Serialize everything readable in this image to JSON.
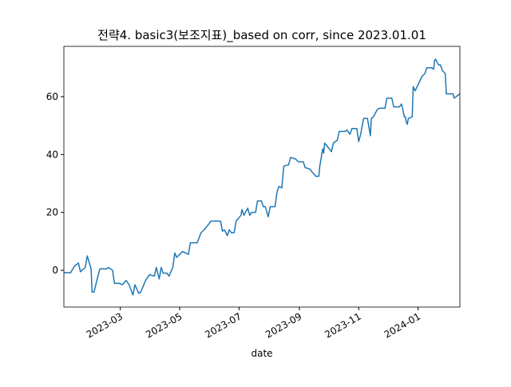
{
  "chart_data": {
    "type": "line",
    "title": "전략4. basic3(보조지표)_based on corr, since 2023.01.01",
    "xlabel": "date",
    "color": "#1f77b4",
    "x": [
      "2023-01-02",
      "2023-01-09",
      "2023-01-13",
      "2023-01-17",
      "2023-01-19",
      "2023-01-24",
      "2023-01-26",
      "2023-01-30",
      "2023-01-31",
      "2023-02-02",
      "2023-02-06",
      "2023-02-08",
      "2023-02-15",
      "2023-02-17",
      "2023-02-21",
      "2023-02-23",
      "2023-02-28",
      "2023-03-03",
      "2023-03-07",
      "2023-03-10",
      "2023-03-14",
      "2023-03-16",
      "2023-03-20",
      "2023-03-22",
      "2023-03-27",
      "2023-03-31",
      "2023-04-05",
      "2023-04-07",
      "2023-04-10",
      "2023-04-12",
      "2023-04-14",
      "2023-04-18",
      "2023-04-20",
      "2023-04-24",
      "2023-04-26",
      "2023-04-28",
      "2023-05-04",
      "2023-05-10",
      "2023-05-12",
      "2023-05-19",
      "2023-05-23",
      "2023-05-26",
      "2023-05-31",
      "2023-06-02",
      "2023-06-12",
      "2023-06-14",
      "2023-06-16",
      "2023-06-19",
      "2023-06-21",
      "2023-06-23",
      "2023-06-26",
      "2023-06-28",
      "2023-07-03",
      "2023-07-04",
      "2023-07-06",
      "2023-07-10",
      "2023-07-12",
      "2023-07-14",
      "2023-07-18",
      "2023-07-20",
      "2023-07-24",
      "2023-07-26",
      "2023-07-28",
      "2023-07-31",
      "2023-08-02",
      "2023-08-07",
      "2023-08-09",
      "2023-08-11",
      "2023-08-14",
      "2023-08-16",
      "2023-08-21",
      "2023-08-23",
      "2023-08-28",
      "2023-08-31",
      "2023-09-05",
      "2023-09-07",
      "2023-09-12",
      "2023-09-14",
      "2023-09-18",
      "2023-09-21",
      "2023-09-22",
      "2023-09-25",
      "2023-09-26",
      "2023-09-27",
      "2023-10-04",
      "2023-10-06",
      "2023-10-10",
      "2023-10-12",
      "2023-10-18",
      "2023-10-20",
      "2023-10-23",
      "2023-10-25",
      "2023-10-30",
      "2023-11-01",
      "2023-11-03",
      "2023-11-06",
      "2023-11-10",
      "2023-11-13",
      "2023-11-14",
      "2023-11-16",
      "2023-11-20",
      "2023-11-22",
      "2023-11-28",
      "2023-11-30",
      "2023-12-05",
      "2023-12-07",
      "2023-12-13",
      "2023-12-15",
      "2023-12-18",
      "2023-12-19",
      "2023-12-20",
      "2023-12-21",
      "2023-12-22",
      "2023-12-26",
      "2023-12-27",
      "2023-12-29",
      "2024-01-05",
      "2024-01-08",
      "2024-01-10",
      "2024-01-15",
      "2024-01-17",
      "2024-01-18",
      "2024-01-19",
      "2024-01-22",
      "2024-01-24",
      "2024-01-26",
      "2024-01-29",
      "2024-01-30",
      "2024-02-06",
      "2024-02-07",
      "2024-02-13"
    ],
    "values": [
      -0.8,
      -0.8,
      1.5,
      2.5,
      -0.5,
      1,
      5,
      0.5,
      -7.5,
      -7.5,
      -2,
      0.5,
      0.5,
      1,
      0,
      -4.5,
      -4.5,
      -5,
      -3.5,
      -5,
      -8.5,
      -5,
      -8,
      -7.5,
      -3.5,
      -1.5,
      -2,
      1,
      -3,
      1,
      -1,
      -1,
      -2,
      1,
      6,
      4.5,
      6.5,
      5.5,
      9.5,
      9.5,
      13,
      14,
      16,
      17,
      17,
      13.5,
      14,
      12,
      14,
      13,
      13,
      17,
      19,
      21,
      19,
      21.5,
      19,
      20,
      20,
      24,
      24,
      22,
      22,
      18.5,
      22,
      22,
      27,
      29,
      28.5,
      36,
      36.5,
      39,
      38.5,
      37.5,
      37.5,
      35.5,
      35,
      34,
      32.5,
      32.5,
      36,
      42,
      40.5,
      44,
      41,
      44,
      45,
      48,
      48,
      48.5,
      47,
      49,
      49,
      44.5,
      47,
      52.5,
      52.5,
      46.5,
      52.5,
      53,
      55.5,
      56,
      56,
      59.5,
      59.5,
      56.5,
      56.5,
      57.5,
      53,
      53,
      51,
      50.5,
      52.5,
      53,
      63.5,
      62,
      67,
      68,
      70,
      70,
      69.5,
      72.5,
      73,
      71,
      71,
      69,
      68,
      61,
      61,
      59.5,
      61
    ],
    "xlim": [
      "2023-01-02",
      "2024-02-13"
    ],
    "xticks": [
      {
        "value": "2023-03-01",
        "label": "2023-03"
      },
      {
        "value": "2023-05-01",
        "label": "2023-05"
      },
      {
        "value": "2023-07-01",
        "label": "2023-07"
      },
      {
        "value": "2023-09-01",
        "label": "2023-09"
      },
      {
        "value": "2023-11-01",
        "label": "2023-11"
      },
      {
        "value": "2024-01-01",
        "label": "2024-01"
      }
    ],
    "ylim": [
      -12.7,
      77.4
    ],
    "yticks": [
      0,
      20,
      40,
      60
    ]
  }
}
